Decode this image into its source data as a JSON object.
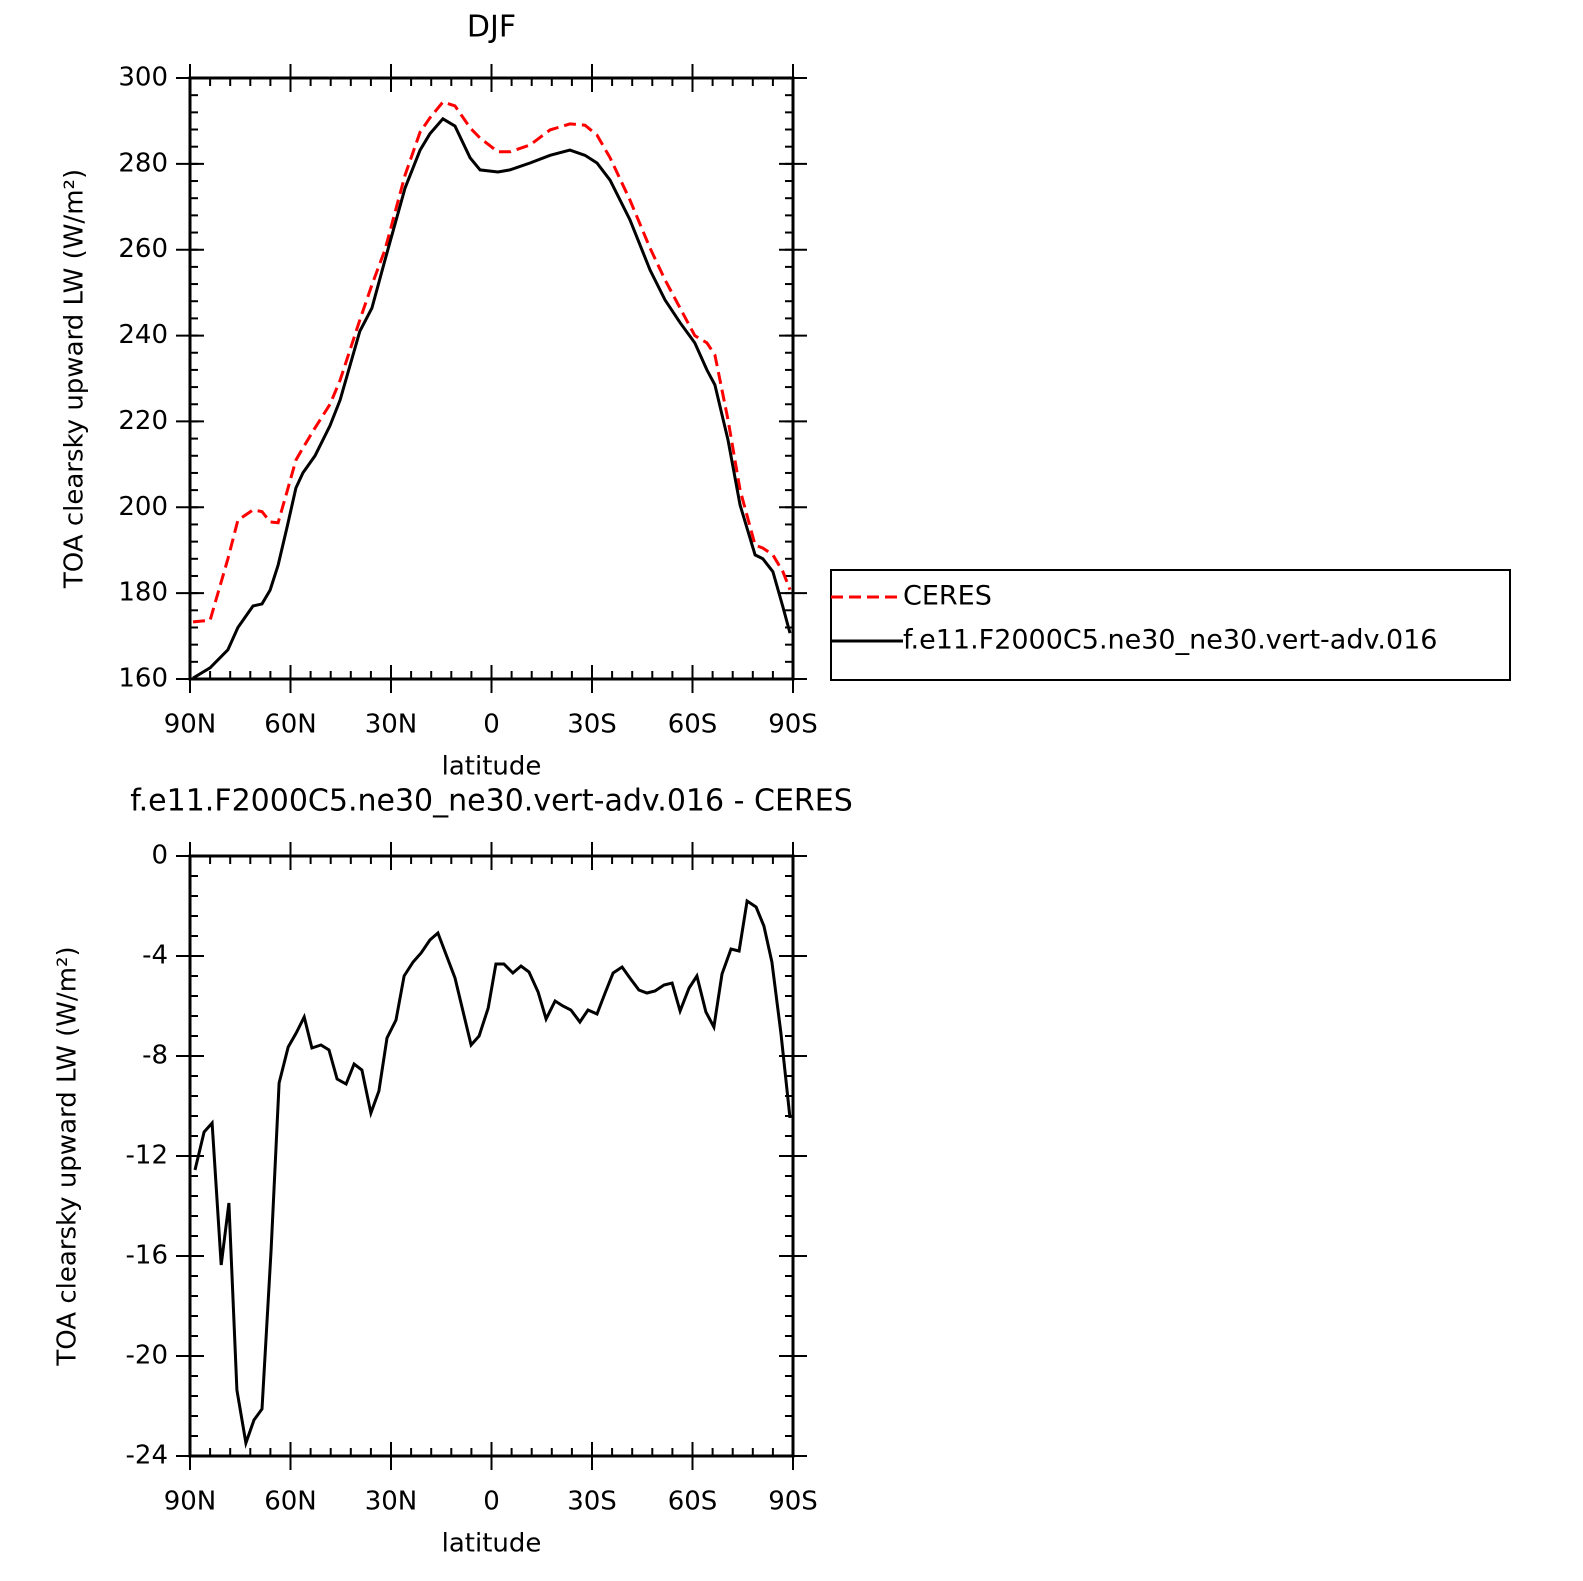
{
  "chart_data": [
    {
      "type": "line",
      "title": "DJF",
      "xlabel": "latitude",
      "ylabel": "TOA clearsky upward LW (W/m²)",
      "x": [
        89.1,
        84.0,
        78.7,
        75.7,
        71.2,
        68.5,
        66.1,
        63.7,
        61.0,
        58.4,
        56.3,
        52.7,
        48.2,
        45.2,
        39.3,
        35.7,
        31.8,
        25.8,
        21.3,
        18.4,
        14.5,
        10.9,
        6.4,
        3.4,
        -1.9,
        -5.5,
        -11.5,
        -17.5,
        -23.4,
        -27.9,
        -31.5,
        -35.4,
        -41.3,
        -47.3,
        -51.8,
        -56.3,
        -60.7,
        -64.3,
        -66.7,
        -70.6,
        -74.2,
        -78.7,
        -81.0,
        -84.0,
        -87.0,
        -89.1
      ],
      "series": [
        {
          "name": "CERES",
          "color": "#ff0000",
          "dash": true,
          "values": [
            173.3,
            173.7,
            188,
            197,
            199.4,
            199,
            196.6,
            196.4,
            203.7,
            211,
            213.8,
            218.5,
            224,
            229.6,
            243.6,
            251.8,
            260,
            277.4,
            287.4,
            290.7,
            294.4,
            293.5,
            288.4,
            286,
            282.8,
            282.8,
            284.4,
            287.9,
            289.3,
            289,
            286.7,
            281.4,
            271.6,
            260.4,
            253,
            246.4,
            240,
            238.3,
            235.5,
            220.4,
            204,
            191.2,
            190.5,
            188.9,
            185,
            180.8
          ]
        },
        {
          "name": "f.e11.F2000C5.ne30_ne30.vert-adv.016",
          "color": "#000000",
          "dash": false,
          "values": [
            160.2,
            162.6,
            166.8,
            172,
            177,
            177.5,
            180.7,
            186.5,
            195.4,
            204.5,
            208,
            212,
            219,
            225,
            241,
            246.4,
            257.6,
            274.4,
            283.2,
            287,
            290.5,
            288.8,
            281.4,
            278.6,
            278.1,
            278.6,
            280.2,
            282,
            283.2,
            282,
            280.2,
            276.2,
            267,
            255.3,
            248.3,
            243,
            238.3,
            232,
            228.5,
            215.7,
            200.5,
            188.9,
            188,
            185,
            176.8,
            170.7
          ]
        }
      ],
      "xlim": [
        90,
        -90
      ],
      "xticks": [
        {
          "value": 90,
          "label": "90N"
        },
        {
          "value": 60,
          "label": "60N"
        },
        {
          "value": 30,
          "label": "30N"
        },
        0,
        {
          "value": -30,
          "label": "30S"
        },
        {
          "value": -60,
          "label": "60S"
        },
        {
          "value": -90,
          "label": "90S"
        }
      ],
      "ylim": [
        160,
        300
      ],
      "yticks": [
        160,
        180,
        200,
        220,
        240,
        260,
        280,
        300
      ],
      "legend": "right"
    },
    {
      "type": "line",
      "title": "f.e11.F2000C5.ne30_ne30.vert-adv.016 - CERES",
      "xlabel": "latitude",
      "ylabel": "TOA clearsky upward LW (W/m²)",
      "x": [
        88.5,
        85.8,
        83.4,
        80.7,
        78.4,
        76.0,
        73.3,
        70.9,
        68.5,
        65.8,
        63.4,
        60.7,
        58.3,
        55.9,
        53.6,
        50.9,
        48.5,
        46.1,
        43.4,
        41.0,
        38.7,
        36.0,
        33.6,
        31.2,
        28.5,
        26.1,
        23.4,
        21.0,
        18.4,
        16.0,
        10.9,
        6.1,
        3.7,
        1.0,
        -1.3,
        -3.7,
        -6.4,
        -8.8,
        -11.2,
        -13.9,
        -16.3,
        -19.0,
        -21.3,
        -23.7,
        -26.4,
        -28.8,
        -31.5,
        -33.9,
        -36.3,
        -39.0,
        -41.3,
        -44.0,
        -46.4,
        -48.8,
        -51.5,
        -53.9,
        -56.3,
        -59.0,
        -61.3,
        -64.0,
        -66.4,
        -68.8,
        -71.5,
        -73.9,
        -76.3,
        -79.0,
        -81.3,
        -83.7,
        -86.4,
        -89.1
      ],
      "values": [
        -12.56,
        -11.04,
        -10.68,
        -16.36,
        -13.88,
        -21.36,
        -23.48,
        -22.56,
        -22.12,
        -15.76,
        -9.08,
        -7.64,
        -7.08,
        -6.44,
        -7.68,
        -7.56,
        -7.76,
        -8.92,
        -9.12,
        -8.32,
        -8.56,
        -10.28,
        -9.4,
        -7.28,
        -6.56,
        -4.8,
        -4.24,
        -3.88,
        -3.36,
        -3.08,
        -4.88,
        -7.56,
        -7.2,
        -6.08,
        -4.32,
        -4.32,
        -4.68,
        -4.4,
        -4.64,
        -5.44,
        -6.52,
        -5.8,
        -6,
        -6.16,
        -6.64,
        -6.16,
        -6.32,
        -5.48,
        -4.68,
        -4.44,
        -4.88,
        -5.36,
        -5.48,
        -5.4,
        -5.16,
        -5.08,
        -6.2,
        -5.28,
        -4.8,
        -6.24,
        -6.84,
        -4.72,
        -3.72,
        -3.8,
        -1.8,
        -2.04,
        -2.8,
        -4.24,
        -7.08,
        -10.48
      ],
      "color": "#000000",
      "xlim": [
        90,
        -90
      ],
      "xticks": [
        {
          "value": 90,
          "label": "90N"
        },
        {
          "value": 60,
          "label": "60N"
        },
        {
          "value": 30,
          "label": "30N"
        },
        0,
        {
          "value": -30,
          "label": "30S"
        },
        {
          "value": -60,
          "label": "60S"
        },
        {
          "value": -90,
          "label": "90S"
        }
      ],
      "ylim": [
        -24,
        0
      ],
      "yticks": [
        -24,
        -20,
        -16,
        -12,
        -8,
        -4,
        0
      ]
    }
  ]
}
